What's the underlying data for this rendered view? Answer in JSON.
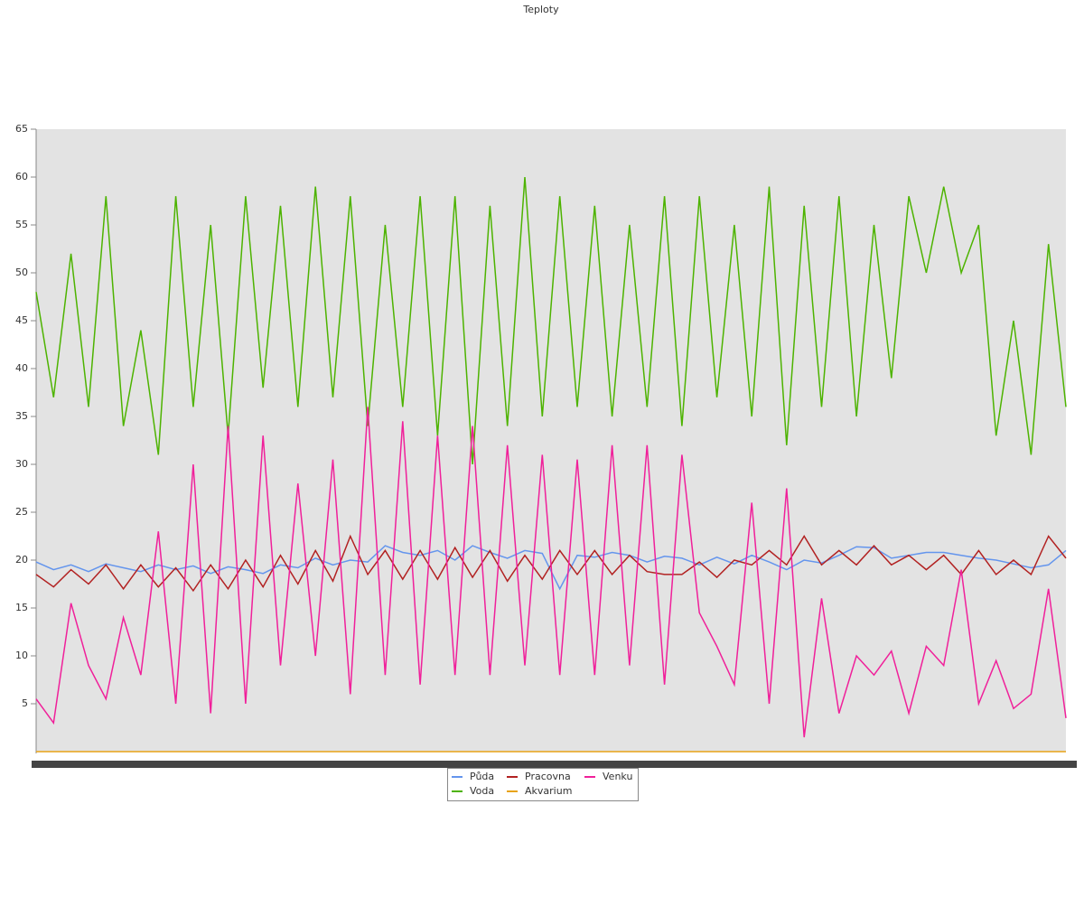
{
  "chart_data": {
    "type": "line",
    "title": "Teploty",
    "ylim": [
      0,
      65
    ],
    "yticks": [
      5,
      10,
      15,
      20,
      25,
      30,
      35,
      40,
      45,
      50,
      55,
      60,
      65
    ],
    "grid": false,
    "series": [
      {
        "name": "Půda",
        "color": "#6495ed",
        "values": [
          19.8,
          19,
          19.5,
          18.8,
          19.6,
          19.2,
          18.8,
          19.5,
          19,
          19.4,
          18.6,
          19.3,
          19,
          18.6,
          19.5,
          19.2,
          20.2,
          19.5,
          20,
          19.8,
          21.5,
          20.8,
          20.5,
          21,
          20,
          21.5,
          20.8,
          20.2,
          21,
          20.7,
          17,
          20.5,
          20.3,
          20.8,
          20.5,
          19.8,
          20.4,
          20.2,
          19.5,
          20.3,
          19.6,
          20.5,
          19.8,
          19,
          20,
          19.7,
          20.5,
          21.4,
          21.3,
          20.2,
          20.5,
          20.8,
          20.8,
          20.5,
          20.2,
          20,
          19.6,
          19.2,
          19.5,
          21
        ]
      },
      {
        "name": "Voda",
        "color": "#4db300",
        "values": [
          48,
          37,
          52,
          36,
          58,
          34,
          44,
          31,
          58,
          36,
          55,
          33,
          58,
          38,
          57,
          36,
          59,
          37,
          58,
          34,
          55,
          36,
          58,
          33,
          58,
          30,
          57,
          34,
          60,
          35,
          58,
          36,
          57,
          35,
          55,
          36,
          58,
          34,
          58,
          37,
          55,
          35,
          59,
          32,
          57,
          36,
          58,
          35,
          55,
          39,
          58,
          50,
          59,
          50,
          55,
          33,
          45,
          31,
          53,
          36
        ]
      },
      {
        "name": "Pracovna",
        "color": "#b22222",
        "values": [
          18.5,
          17.2,
          19,
          17.5,
          19.5,
          17,
          19.5,
          17.2,
          19.2,
          16.8,
          19.5,
          17,
          20,
          17.2,
          20.5,
          17.5,
          21,
          17.8,
          22.5,
          18.5,
          21,
          18,
          21,
          18,
          21.3,
          18.2,
          21,
          17.8,
          20.5,
          18,
          21,
          18.5,
          21,
          18.5,
          20.5,
          18.8,
          18.5,
          18.5,
          19.8,
          18.2,
          20,
          19.5,
          21,
          19.5,
          22.5,
          19.5,
          21,
          19.5,
          21.5,
          19.5,
          20.5,
          19,
          20.5,
          18.5,
          21,
          18.5,
          20,
          18.5,
          22.5,
          20.2
        ]
      },
      {
        "name": "Akvarium",
        "color": "#e8a317",
        "values": [
          0,
          0,
          0,
          0,
          0,
          0,
          0,
          0,
          0,
          0,
          0,
          0,
          0,
          0,
          0,
          0,
          0,
          0,
          0,
          0,
          0,
          0,
          0,
          0,
          0,
          0,
          0,
          0,
          0,
          0,
          0,
          0,
          0,
          0,
          0,
          0,
          0,
          0,
          0,
          0,
          0,
          0,
          0,
          0,
          0,
          0,
          0,
          0,
          0,
          0,
          0,
          0,
          0,
          0,
          0,
          0,
          0,
          0,
          0,
          0
        ]
      },
      {
        "name": "Venku",
        "color": "#f0209a",
        "values": [
          5.5,
          3,
          15.5,
          9,
          5.5,
          14,
          8,
          23,
          5,
          30,
          4,
          34,
          5,
          33,
          9,
          28,
          10,
          30.5,
          6,
          36,
          8,
          34.5,
          7,
          33,
          8,
          34,
          8,
          32,
          9,
          31,
          8,
          30.5,
          8,
          32,
          9,
          32,
          7,
          31,
          14.5,
          11,
          7,
          26,
          5,
          27.5,
          1.5,
          16,
          4,
          10,
          8,
          10.5,
          4,
          11,
          9,
          19,
          5,
          9.5,
          4.5,
          6,
          17,
          3.5
        ]
      }
    ]
  }
}
